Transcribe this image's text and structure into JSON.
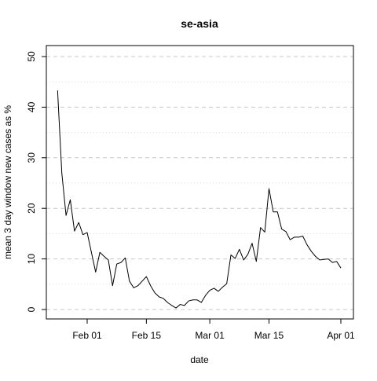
{
  "chart_data": {
    "type": "line",
    "title": "se-asia",
    "xlabel": "date",
    "ylabel": "mean  3  day window new cases as %",
    "ylim": [
      0,
      50
    ],
    "xlim": [
      "2020-01-23",
      "2020-04-02"
    ],
    "x_ticks": [
      {
        "date": "2020-02-01",
        "label": "Feb 01"
      },
      {
        "date": "2020-02-15",
        "label": "Feb 15"
      },
      {
        "date": "2020-03-01",
        "label": "Mar 01"
      },
      {
        "date": "2020-03-15",
        "label": "Mar 15"
      },
      {
        "date": "2020-04-01",
        "label": "Apr 01"
      }
    ],
    "y_ticks": [
      0,
      10,
      20,
      30,
      40,
      50
    ],
    "grid": "horizontal dashed at major ticks, dotted at minor ticks",
    "series": [
      {
        "color": "#000000",
        "x": [
          "2020-01-25",
          "2020-01-26",
          "2020-01-27",
          "2020-01-28",
          "2020-01-29",
          "2020-01-30",
          "2020-01-31",
          "2020-02-01",
          "2020-02-02",
          "2020-02-03",
          "2020-02-04",
          "2020-02-05",
          "2020-02-06",
          "2020-02-07",
          "2020-02-08",
          "2020-02-09",
          "2020-02-10",
          "2020-02-11",
          "2020-02-12",
          "2020-02-13",
          "2020-02-14",
          "2020-02-15",
          "2020-02-16",
          "2020-02-17",
          "2020-02-18",
          "2020-02-19",
          "2020-02-20",
          "2020-02-21",
          "2020-02-22",
          "2020-02-23",
          "2020-02-24",
          "2020-02-25",
          "2020-02-26",
          "2020-02-27",
          "2020-02-28",
          "2020-02-29",
          "2020-03-01",
          "2020-03-02",
          "2020-03-03",
          "2020-03-04",
          "2020-03-05",
          "2020-03-06",
          "2020-03-07",
          "2020-03-08",
          "2020-03-09",
          "2020-03-10",
          "2020-03-11",
          "2020-03-12",
          "2020-03-13",
          "2020-03-14",
          "2020-03-15",
          "2020-03-16",
          "2020-03-17",
          "2020-03-18",
          "2020-03-19",
          "2020-03-20",
          "2020-03-21",
          "2020-03-22",
          "2020-03-23",
          "2020-03-24",
          "2020-03-25",
          "2020-03-26",
          "2020-03-27",
          "2020-03-28",
          "2020-03-29",
          "2020-03-30",
          "2020-03-31",
          "2020-04-01"
        ],
        "y": [
          43.3,
          27,
          18.6,
          21.7,
          15.5,
          17.2,
          14.8,
          15.2,
          11.3,
          7.4,
          11.3,
          10.5,
          9.8,
          4.7,
          9,
          9.3,
          10.2,
          5.6,
          4.3,
          4.7,
          5.6,
          6.5,
          4.7,
          3.3,
          2.5,
          2.2,
          1.4,
          0.8,
          0.3,
          1,
          0.8,
          1.7,
          1.9,
          1.9,
          1.4,
          2.8,
          3.8,
          4.2,
          3.6,
          4.4,
          5.1,
          10.8,
          10.1,
          11.9,
          9.8,
          10.9,
          13.1,
          9.5,
          16.2,
          15.3,
          23.9,
          19.3,
          19.3,
          15.9,
          15.4,
          13.8,
          14.3,
          14.3,
          14.5,
          12.8,
          11.5,
          10.5,
          9.8,
          9.9,
          10,
          9.3,
          9.5,
          8.2
        ]
      }
    ]
  }
}
